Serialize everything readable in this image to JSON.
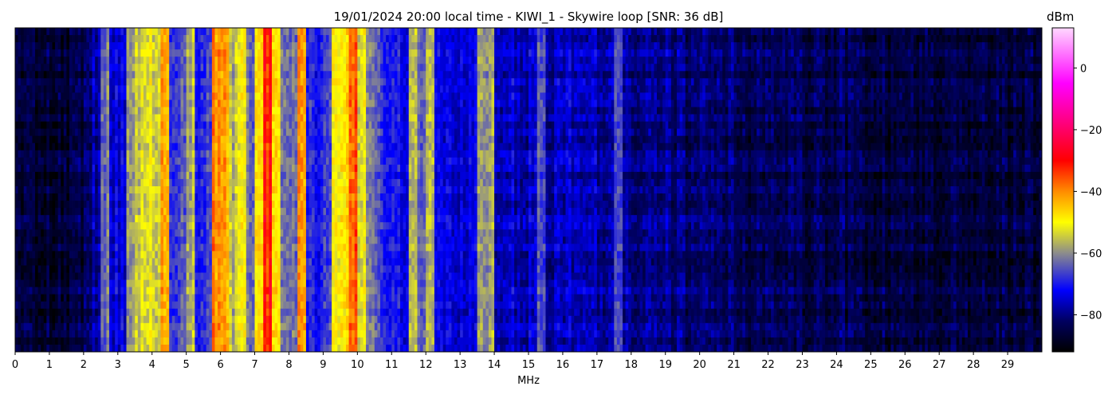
{
  "chart_data": {
    "type": "heatmap",
    "title": "19/01/2024 20:00 local time - KIWI_1 - Skywire loop [SNR: 36 dB]",
    "xlabel": "MHz",
    "xlim": [
      0,
      30
    ],
    "xticks": [
      "0",
      "1",
      "2",
      "3",
      "4",
      "5",
      "6",
      "7",
      "8",
      "9",
      "10",
      "11",
      "12",
      "13",
      "14",
      "15",
      "16",
      "17",
      "18",
      "19",
      "20",
      "21",
      "22",
      "23",
      "24",
      "25",
      "26",
      "27",
      "28",
      "29"
    ],
    "colorbar": {
      "label": "dBm",
      "range": [
        -92,
        13
      ],
      "ticks": [
        "0",
        "−20",
        "−40",
        "−60",
        "−80"
      ],
      "tick_values": [
        0,
        -20,
        -40,
        -60,
        -80
      ],
      "colormap": [
        {
          "v": -92,
          "c": "#000000"
        },
        {
          "v": -82,
          "c": "#000060"
        },
        {
          "v": -72,
          "c": "#0000ff"
        },
        {
          "v": -60,
          "c": "#8c8c8c"
        },
        {
          "v": -50,
          "c": "#ffff00"
        },
        {
          "v": -40,
          "c": "#ff8c00"
        },
        {
          "v": -30,
          "c": "#ff0000"
        },
        {
          "v": -5,
          "c": "#ff00ff"
        },
        {
          "v": 13,
          "c": "#ffd8ff"
        }
      ]
    },
    "bin_width_mhz": 0.25,
    "mean_level_dbm": [
      -87,
      -87,
      -87,
      -87,
      -87,
      -87,
      -87,
      -86,
      -79,
      -78,
      -62,
      -74,
      -74,
      -60,
      -54,
      -52,
      -56,
      -44,
      -68,
      -66,
      -56,
      -70,
      -68,
      -40,
      -42,
      -56,
      -50,
      -62,
      -50,
      -32,
      -48,
      -62,
      -64,
      -42,
      -70,
      -70,
      -66,
      -52,
      -46,
      -36,
      -52,
      -64,
      -66,
      -68,
      -72,
      -72,
      -58,
      -62,
      -56,
      -74,
      -73,
      -74,
      -75,
      -74,
      -60,
      -58,
      -76,
      -77,
      -76,
      -77,
      -76,
      -66,
      -78,
      -77,
      -76,
      -78,
      -79,
      -77,
      -78,
      -79,
      -68,
      -78,
      -79,
      -80,
      -80,
      -81,
      -80,
      -81,
      -82,
      -80,
      -81,
      -82,
      -81,
      -82,
      -83,
      -84,
      -84,
      -83,
      -84,
      -85,
      -84,
      -84,
      -85,
      -84,
      -85,
      -85,
      -84,
      -85,
      -85,
      -86,
      -85,
      -85,
      -86,
      -85,
      -86,
      -86,
      -85,
      -86,
      -86,
      -86,
      -85,
      -86,
      -86,
      -86,
      -86,
      -86,
      -86,
      -86,
      -86,
      -86
    ]
  }
}
